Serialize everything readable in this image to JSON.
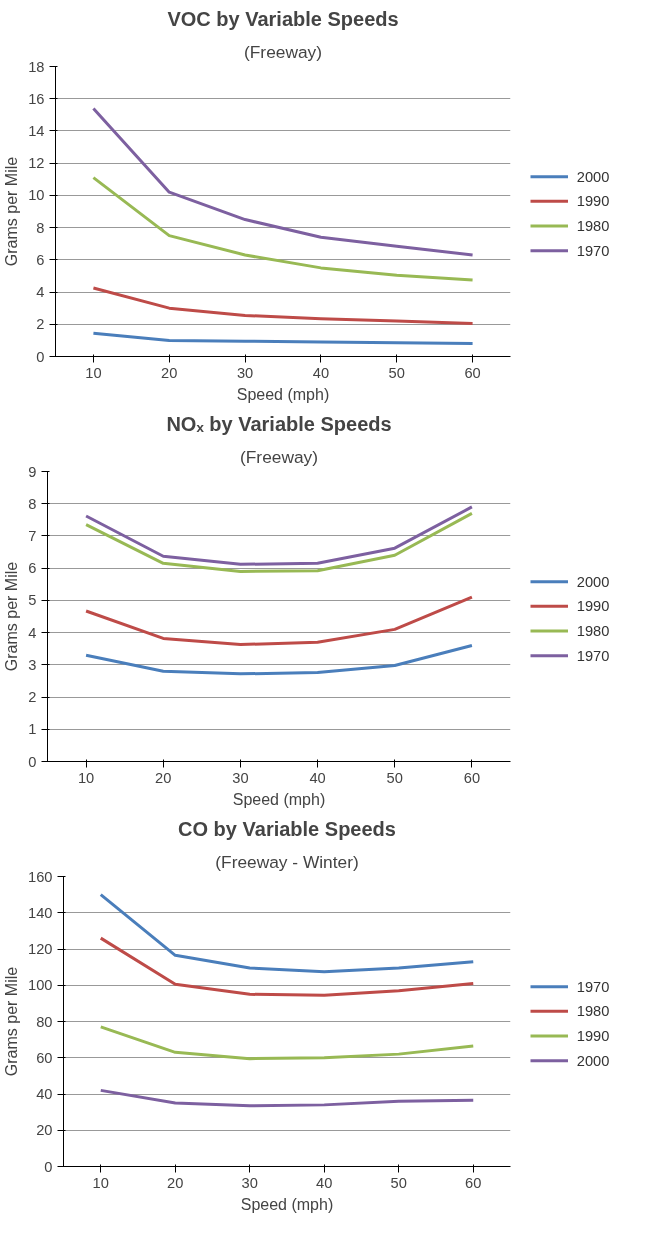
{
  "chart_data": [
    {
      "type": "line",
      "title": "VOC by Variable Speeds",
      "subtitle": "(Freeway)",
      "xlabel": "Speed (mph)",
      "ylabel": "Grams per Mile",
      "categories": [
        "10",
        "20",
        "30",
        "40",
        "50",
        "60"
      ],
      "ylim": [
        0,
        18
      ],
      "yticks": [
        0,
        2,
        4,
        6,
        8,
        10,
        12,
        14,
        16,
        18
      ],
      "grid": "y",
      "legend": "right",
      "marker": "none",
      "line_style": "solid",
      "series": [
        {
          "name": "2000",
          "color": "#4a7ebb",
          "values": [
            1.45,
            1.0,
            0.95,
            0.9,
            0.85,
            0.8
          ]
        },
        {
          "name": "1990",
          "color": "#be4b48",
          "values": [
            4.25,
            3.0,
            2.55,
            2.35,
            2.2,
            2.05
          ]
        },
        {
          "name": "1980",
          "color": "#98b954",
          "values": [
            11.1,
            7.5,
            6.3,
            5.5,
            5.05,
            4.75
          ]
        },
        {
          "name": "1970",
          "color": "#7d60a0",
          "values": [
            15.4,
            10.2,
            8.5,
            7.4,
            6.85,
            6.3
          ]
        }
      ]
    },
    {
      "type": "line",
      "title": "NOₓ by Variable Speeds",
      "subtitle": "(Freeway)",
      "xlabel": "Speed (mph)",
      "ylabel": "Grams per Mile",
      "categories": [
        "10",
        "20",
        "30",
        "40",
        "50",
        "60"
      ],
      "ylim": [
        0,
        9
      ],
      "yticks": [
        0,
        1,
        2,
        3,
        4,
        5,
        6,
        7,
        8,
        9
      ],
      "grid": "y",
      "legend": "right",
      "marker": "none",
      "line_style": "solid",
      "series": [
        {
          "name": "2000",
          "color": "#4a7ebb",
          "values": [
            3.3,
            2.8,
            2.72,
            2.76,
            2.98,
            3.6
          ]
        },
        {
          "name": "1990",
          "color": "#be4b48",
          "values": [
            4.67,
            3.82,
            3.63,
            3.7,
            4.1,
            5.1
          ]
        },
        {
          "name": "1980",
          "color": "#98b954",
          "values": [
            7.35,
            6.15,
            5.9,
            5.92,
            6.4,
            7.7
          ]
        },
        {
          "name": "1970",
          "color": "#7d60a0",
          "values": [
            7.62,
            6.37,
            6.12,
            6.15,
            6.62,
            7.9
          ]
        }
      ]
    },
    {
      "type": "line",
      "title": "CO by Variable Speeds",
      "subtitle": "(Freeway - Winter)",
      "xlabel": "Speed (mph)",
      "ylabel": "Grams per Mile",
      "categories": [
        "10",
        "20",
        "30",
        "40",
        "50",
        "60"
      ],
      "ylim": [
        0,
        160
      ],
      "yticks": [
        0,
        20,
        40,
        60,
        80,
        100,
        120,
        140,
        160
      ],
      "grid": "y",
      "legend": "right",
      "marker": "none",
      "line_style": "solid",
      "series": [
        {
          "name": "1970",
          "color": "#4a7ebb",
          "values": [
            150,
            116.5,
            109.5,
            107.5,
            109.5,
            113
          ]
        },
        {
          "name": "1980",
          "color": "#be4b48",
          "values": [
            126,
            100.5,
            95,
            94.5,
            97,
            101
          ]
        },
        {
          "name": "1990",
          "color": "#98b954",
          "values": [
            77,
            63,
            59.5,
            60,
            62,
            66.5
          ]
        },
        {
          "name": "2000",
          "color": "#7d60a0",
          "values": [
            42,
            35,
            33.5,
            34,
            36,
            36.5
          ]
        }
      ]
    }
  ]
}
